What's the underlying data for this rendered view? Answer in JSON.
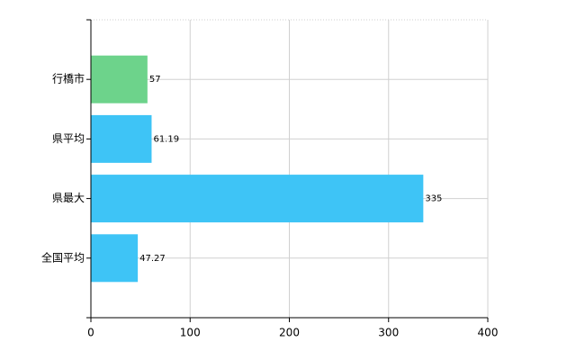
{
  "chart_data": {
    "type": "hbar",
    "categories": [
      "行橋市",
      "県平均",
      "県最大",
      "全国平均"
    ],
    "values": [
      57,
      61.19,
      335,
      47.27
    ],
    "colors": [
      "#6dd38b",
      "#3ec4f6",
      "#3ec4f6",
      "#3ec4f6"
    ],
    "xlim": [
      0,
      400
    ],
    "xticks": [
      0,
      100,
      200,
      300,
      400
    ],
    "grid": true
  }
}
